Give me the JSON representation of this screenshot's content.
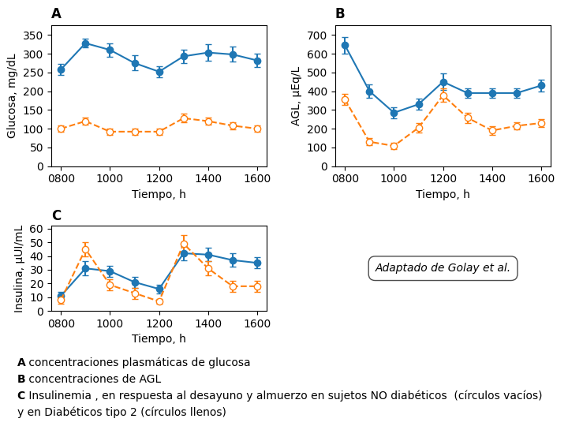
{
  "chart_data": [
    {
      "type": "line",
      "annotation": "A",
      "x": [
        800,
        900,
        1000,
        1100,
        1200,
        1300,
        1400,
        1500,
        1600
      ],
      "xlim": [
        760,
        1640
      ],
      "xticks": [
        {
          "value": 800,
          "label": "0800"
        },
        {
          "value": 1000,
          "label": "1000"
        },
        {
          "value": 1200,
          "label": "1200"
        },
        {
          "value": 1400,
          "label": "1400"
        },
        {
          "value": 1600,
          "label": "1600"
        }
      ],
      "x_label": "Tiempo, h",
      "y_label": "Glucosa, mg/dL",
      "ylim": [
        0,
        375
      ],
      "yticks": [
        0,
        50,
        100,
        150,
        200,
        250,
        300,
        350
      ],
      "grid": false,
      "series": [
        {
          "marker": "filled_circle",
          "line_style": "solid",
          "values": [
            258,
            328,
            310,
            275,
            252,
            293,
            303,
            298,
            282
          ],
          "errors": [
            15,
            12,
            18,
            20,
            15,
            18,
            22,
            20,
            18
          ]
        },
        {
          "marker": "open_circle",
          "line_style": "dashed",
          "values": [
            100,
            120,
            92,
            92,
            92,
            128,
            120,
            108,
            100
          ],
          "errors": [
            8,
            10,
            8,
            8,
            8,
            12,
            10,
            10,
            8
          ]
        }
      ]
    },
    {
      "type": "line",
      "annotation": "B",
      "x": [
        800,
        900,
        1000,
        1100,
        1200,
        1300,
        1400,
        1500,
        1600
      ],
      "xlim": [
        760,
        1640
      ],
      "xticks": [
        {
          "value": 800,
          "label": "0800"
        },
        {
          "value": 1000,
          "label": "1000"
        },
        {
          "value": 1200,
          "label": "1200"
        },
        {
          "value": 1400,
          "label": "1400"
        },
        {
          "value": 1600,
          "label": "1600"
        }
      ],
      "x_label": "Tiempo, h",
      "y_label": "AGL, μEq/L",
      "ylim": [
        0,
        750
      ],
      "yticks": [
        0,
        100,
        200,
        300,
        400,
        500,
        600,
        700
      ],
      "grid": false,
      "series": [
        {
          "marker": "filled_circle",
          "line_style": "solid",
          "values": [
            645,
            400,
            285,
            330,
            450,
            390,
            390,
            390,
            430
          ],
          "errors": [
            45,
            35,
            28,
            30,
            45,
            25,
            25,
            25,
            30
          ]
        },
        {
          "marker": "open_circle",
          "line_style": "dashed",
          "values": [
            355,
            130,
            108,
            205,
            378,
            258,
            190,
            215,
            230
          ],
          "errors": [
            30,
            20,
            18,
            25,
            35,
            28,
            22,
            20,
            22
          ]
        }
      ]
    },
    {
      "type": "line",
      "annotation": "C",
      "x": [
        800,
        900,
        1000,
        1100,
        1200,
        1300,
        1400,
        1500,
        1600
      ],
      "xlim": [
        760,
        1640
      ],
      "xticks": [
        {
          "value": 800,
          "label": "0800"
        },
        {
          "value": 1000,
          "label": "1000"
        },
        {
          "value": 1200,
          "label": "1200"
        },
        {
          "value": 1400,
          "label": "1400"
        },
        {
          "value": 1600,
          "label": "1600"
        }
      ],
      "x_label": "Tiempo, h",
      "y_label": "Insulina, μUI/mL",
      "ylim": [
        0,
        62
      ],
      "yticks": [
        0,
        10,
        20,
        30,
        40,
        50,
        60
      ],
      "grid": false,
      "series": [
        {
          "marker": "filled_circle",
          "line_style": "solid",
          "values": [
            11,
            31,
            29,
            21,
            16,
            42,
            41,
            37,
            35
          ],
          "errors": [
            3,
            5,
            4,
            4,
            3,
            5,
            5,
            5,
            4
          ]
        },
        {
          "marker": "open_circle",
          "line_style": "dashed",
          "values": [
            8,
            45,
            19,
            13,
            7,
            49,
            31,
            18,
            18
          ],
          "errors": [
            3,
            5,
            4,
            4,
            2,
            6,
            5,
            4,
            4
          ]
        }
      ]
    }
  ],
  "citation": "Adaptado de Golay et al.",
  "caption": [
    {
      "bold": "A",
      "text": " concentraciones plasmáticas de glucosa"
    },
    {
      "bold": "B",
      "text": " concentraciones de AGL"
    },
    {
      "bold": "C",
      "text": " Insulinemia , en respuesta al desayuno y almuerzo en sujetos NO diabéticos  (círculos vacíos)"
    },
    {
      "text": "y en Diabéticos tipo 2 (círculos llenos)"
    }
  ]
}
